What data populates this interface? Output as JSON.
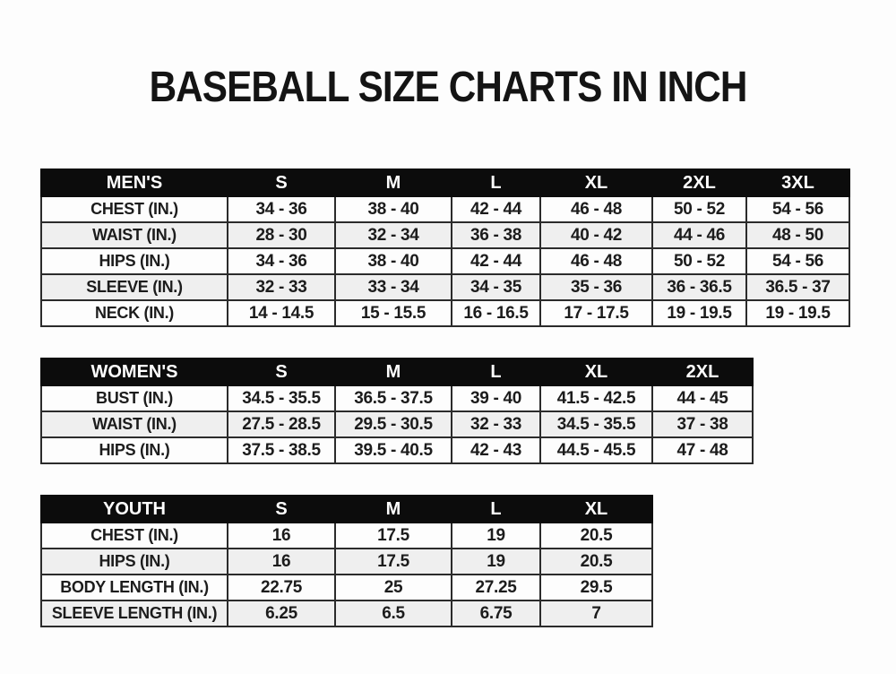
{
  "page": {
    "title": "BASEBALL SIZE CHARTS IN INCH"
  },
  "colors": {
    "header_bg": "#0c0c0c",
    "header_text": "#ffffff",
    "row_alt_bg": "#efefef",
    "border": "#2b2b2b"
  },
  "tables": [
    {
      "name": "mens",
      "header": [
        "MEN'S",
        "S",
        "M",
        "L",
        "XL",
        "2XL",
        "3XL"
      ],
      "rows": [
        [
          "CHEST (IN.)",
          "34 - 36",
          "38 - 40",
          "42 - 44",
          "46 - 48",
          "50 - 52",
          "54 - 56"
        ],
        [
          "WAIST (IN.)",
          "28 - 30",
          "32 - 34",
          "36 - 38",
          "40 - 42",
          "44 - 46",
          "48 - 50"
        ],
        [
          "HIPS (IN.)",
          "34 - 36",
          "38 - 40",
          "42 - 44",
          "46 - 48",
          "50 - 52",
          "54 - 56"
        ],
        [
          "SLEEVE (IN.)",
          "32 - 33",
          "33 - 34",
          "34 - 35",
          "35 - 36",
          "36 - 36.5",
          "36.5 - 37"
        ],
        [
          "NECK (IN.)",
          "14 - 14.5",
          "15 - 15.5",
          "16 - 16.5",
          "17 - 17.5",
          "19 - 19.5",
          "19 - 19.5"
        ]
      ]
    },
    {
      "name": "womens",
      "header": [
        "WOMEN'S",
        "S",
        "M",
        "L",
        "XL",
        "2XL"
      ],
      "rows": [
        [
          "BUST (IN.)",
          "34.5 - 35.5",
          "36.5 - 37.5",
          "39 - 40",
          "41.5 - 42.5",
          "44 - 45"
        ],
        [
          "WAIST (IN.)",
          "27.5 - 28.5",
          "29.5 - 30.5",
          "32 - 33",
          "34.5 - 35.5",
          "37 - 38"
        ],
        [
          "HIPS (IN.)",
          "37.5 - 38.5",
          "39.5 - 40.5",
          "42 - 43",
          "44.5 - 45.5",
          "47 - 48"
        ]
      ]
    },
    {
      "name": "youth",
      "header": [
        "YOUTH",
        "S",
        "M",
        "L",
        "XL"
      ],
      "rows": [
        [
          "CHEST (IN.)",
          "16",
          "17.5",
          "19",
          "20.5"
        ],
        [
          "HIPS (IN.)",
          "16",
          "17.5",
          "19",
          "20.5"
        ],
        [
          "BODY LENGTH (IN.)",
          "22.75",
          "25",
          "27.25",
          "29.5"
        ],
        [
          "SLEEVE LENGTH (IN.)",
          "6.25",
          "6.5",
          "6.75",
          "7"
        ]
      ]
    }
  ]
}
